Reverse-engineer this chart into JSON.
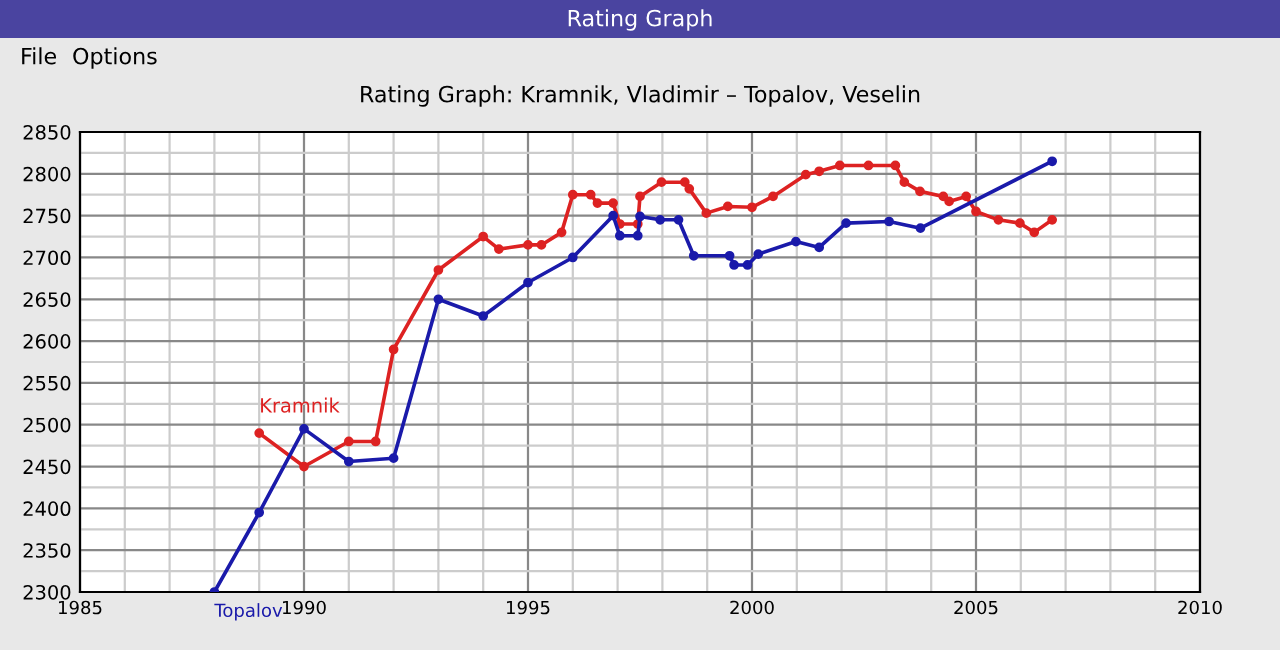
{
  "chart_data": {
    "type": "line",
    "title": "Rating Graph: Kramnik, Vladimir – Topalov, Veselin",
    "annotations": [
      "Rating Graph",
      "File",
      "Options"
    ],
    "series": [
      {
        "name": "Kramnik",
        "color": "#dd2222",
        "x": [
          1989,
          1990,
          1991,
          1991.6,
          1992,
          1993,
          1994,
          1994.35,
          1995,
          1995.3,
          1995.75,
          1996,
          1996.4,
          1996.55,
          1996.9,
          1997.05,
          1997.45,
          1997.5,
          1997.98,
          1998.5,
          1998.6,
          1998.98,
          1999.46,
          2000,
          2000.47,
          2001.2,
          2001.5,
          2001.96,
          2002.6,
          2003.2,
          2003.4,
          2003.75,
          2004.27,
          2004.4,
          2004.78,
          2005,
          2005.5,
          2005.98,
          2006.3,
          2006.7
        ],
        "values": [
          2490,
          2450,
          2480,
          2480,
          2590,
          2685,
          2725,
          2710,
          2715,
          2715,
          2730,
          2775,
          2775,
          2765,
          2765,
          2740,
          2740,
          2773,
          2790,
          2790,
          2782,
          2753,
          2761,
          2760,
          2773,
          2799,
          2803,
          2810,
          2810,
          2810,
          2790,
          2779,
          2773,
          2767,
          2773,
          2755,
          2745,
          2741,
          2730,
          2745
        ]
      },
      {
        "name": "Topalov",
        "color": "#1a1aaa",
        "x": [
          1988,
          1989,
          1990,
          1991,
          1992,
          1993,
          1994,
          1995,
          1996,
          1996.9,
          1997.05,
          1997.45,
          1997.5,
          1997.95,
          1998.36,
          1998.7,
          1999.5,
          1999.6,
          1999.9,
          2000.14,
          2000.98,
          2001.5,
          2002.1,
          2003.06,
          2003.76,
          2006.7
        ],
        "values": [
          2300,
          2395,
          2495,
          2456,
          2460,
          2650,
          2630,
          2670,
          2700,
          2750,
          2726,
          2726,
          2749,
          2745,
          2745,
          2702,
          2702,
          2691,
          2691,
          2704,
          2719,
          2712,
          2741,
          2743,
          2735,
          2815
        ]
      }
    ],
    "xlim": [
      1985,
      2010
    ],
    "xticks": [
      1985,
      {
        "value": 1986,
        "label": null
      },
      {
        "value": 1987,
        "label": null
      },
      {
        "value": 1988,
        "label": null
      },
      {
        "value": 1989,
        "label": null
      },
      1990,
      {
        "value": 1991,
        "label": null
      },
      {
        "value": 1992,
        "label": null
      },
      {
        "value": 1993,
        "label": null
      },
      {
        "value": 1994,
        "label": null
      },
      1995,
      {
        "value": 1996,
        "label": null
      },
      {
        "value": 1997,
        "label": null
      },
      {
        "value": 1998,
        "label": null
      },
      {
        "value": 1999,
        "label": null
      },
      2000,
      {
        "value": 2001,
        "label": null
      },
      {
        "value": 2002,
        "label": null
      },
      {
        "value": 2003,
        "label": null
      },
      {
        "value": 2004,
        "label": null
      },
      2005,
      {
        "value": 2006,
        "label": null
      },
      {
        "value": 2007,
        "label": null
      },
      {
        "value": 2008,
        "label": null
      },
      {
        "value": 2009,
        "label": null
      },
      2010
    ],
    "ylim": [
      2300,
      2850
    ],
    "yticks": [
      2300,
      {
        "value": 2325,
        "label": null
      },
      2350,
      {
        "value": 2375,
        "label": null
      },
      2400,
      {
        "value": 2425,
        "label": null
      },
      2450,
      {
        "value": 2475,
        "label": null
      },
      2500,
      {
        "value": 2525,
        "label": null
      },
      2550,
      {
        "value": 2575,
        "label": null
      },
      2600,
      {
        "value": 2625,
        "label": null
      },
      2650,
      {
        "value": 2675,
        "label": null
      },
      2700,
      {
        "value": 2725,
        "label": null
      },
      2750,
      {
        "value": 2775,
        "label": null
      },
      2800,
      {
        "value": 2825,
        "label": null
      },
      2850
    ],
    "grid": true,
    "marker": "circle",
    "line_style": "solid",
    "legend": false
  }
}
